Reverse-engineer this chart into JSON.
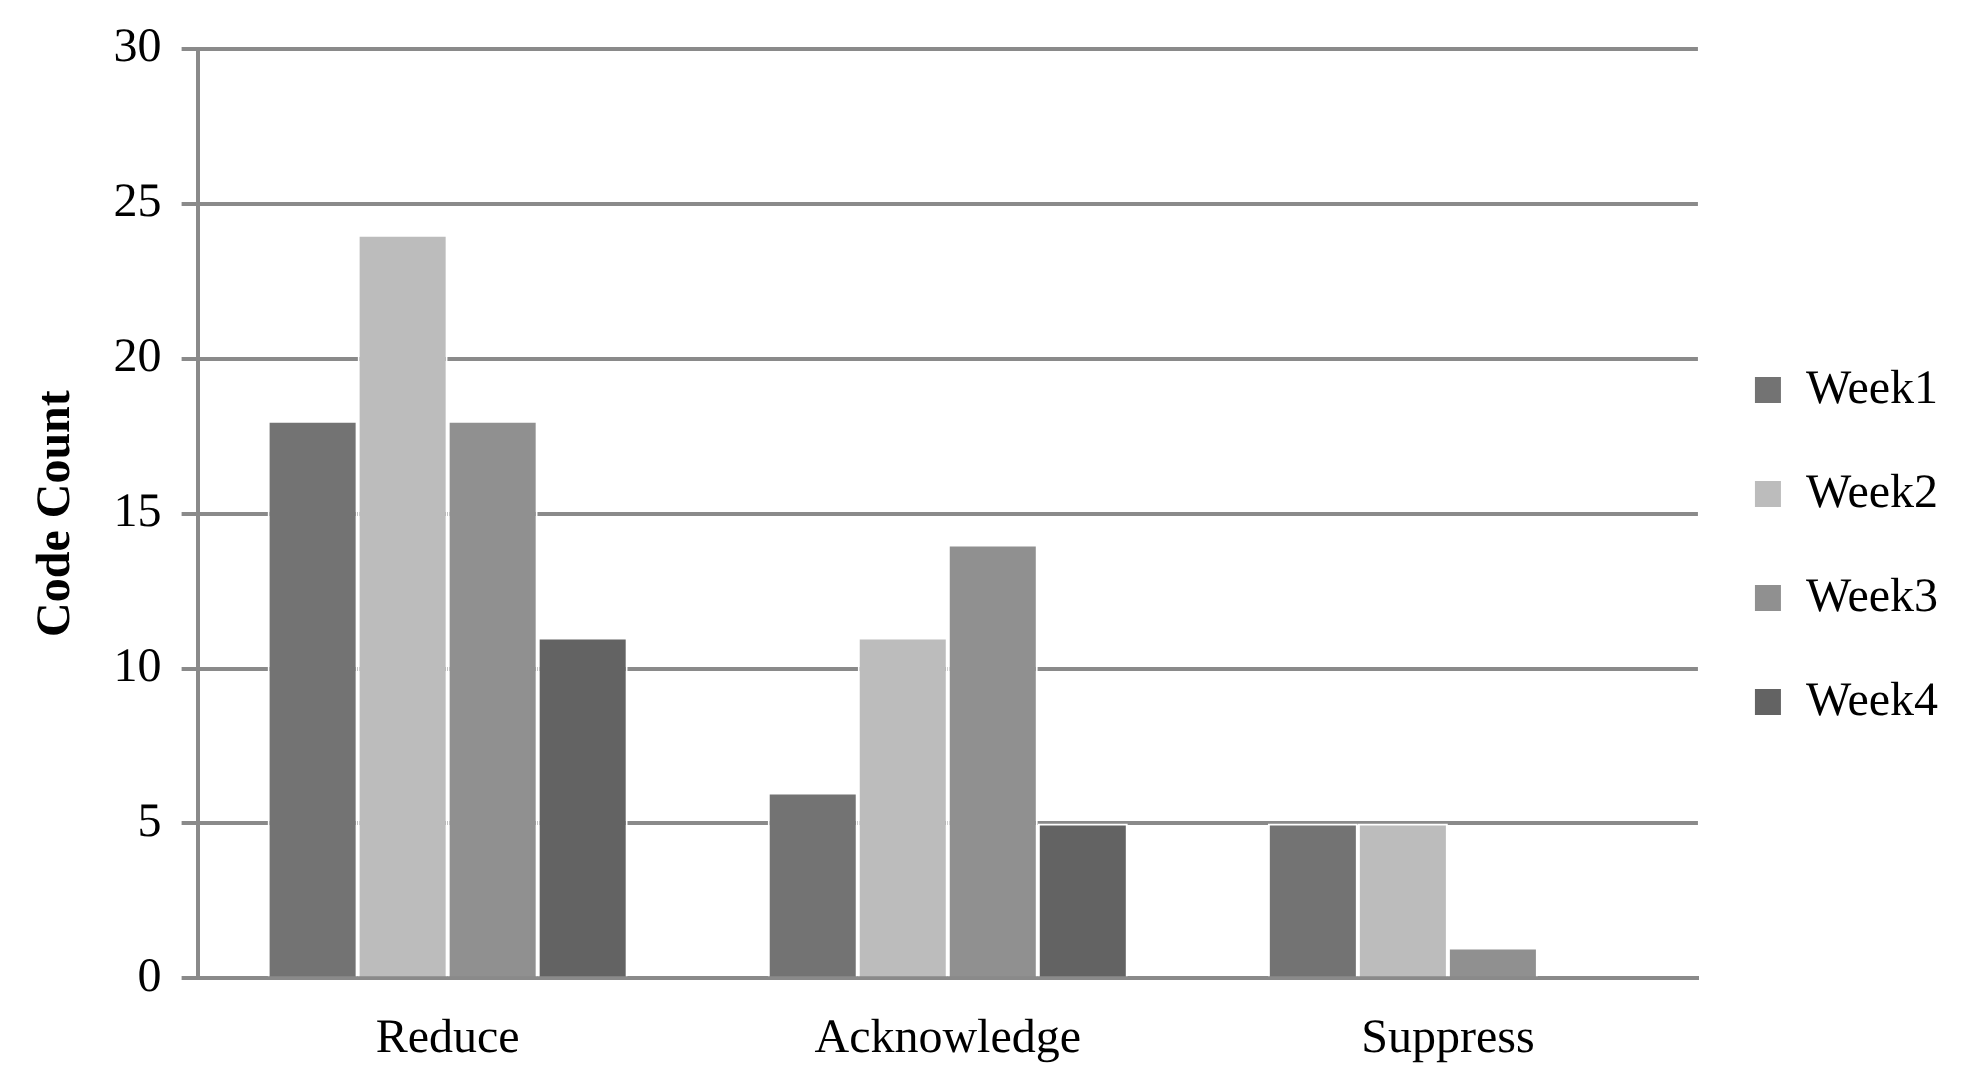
{
  "chart_data": {
    "type": "bar",
    "ylabel": "Code Count",
    "categories": [
      "Reduce",
      "Acknowledge",
      "Suppress"
    ],
    "series": [
      {
        "name": "Week1",
        "color": "#737373",
        "values": [
          18,
          6,
          5
        ]
      },
      {
        "name": "Week2",
        "color": "#bcbcbc",
        "values": [
          24,
          11,
          5
        ]
      },
      {
        "name": "Week3",
        "color": "#909090",
        "values": [
          18,
          14,
          1
        ]
      },
      {
        "name": "Week4",
        "color": "#636363",
        "values": [
          11,
          5,
          0
        ]
      }
    ],
    "ylim": [
      0,
      30
    ],
    "yticks": [
      0,
      5,
      10,
      15,
      20,
      25,
      30
    ],
    "grid": "y",
    "legend": "right"
  }
}
